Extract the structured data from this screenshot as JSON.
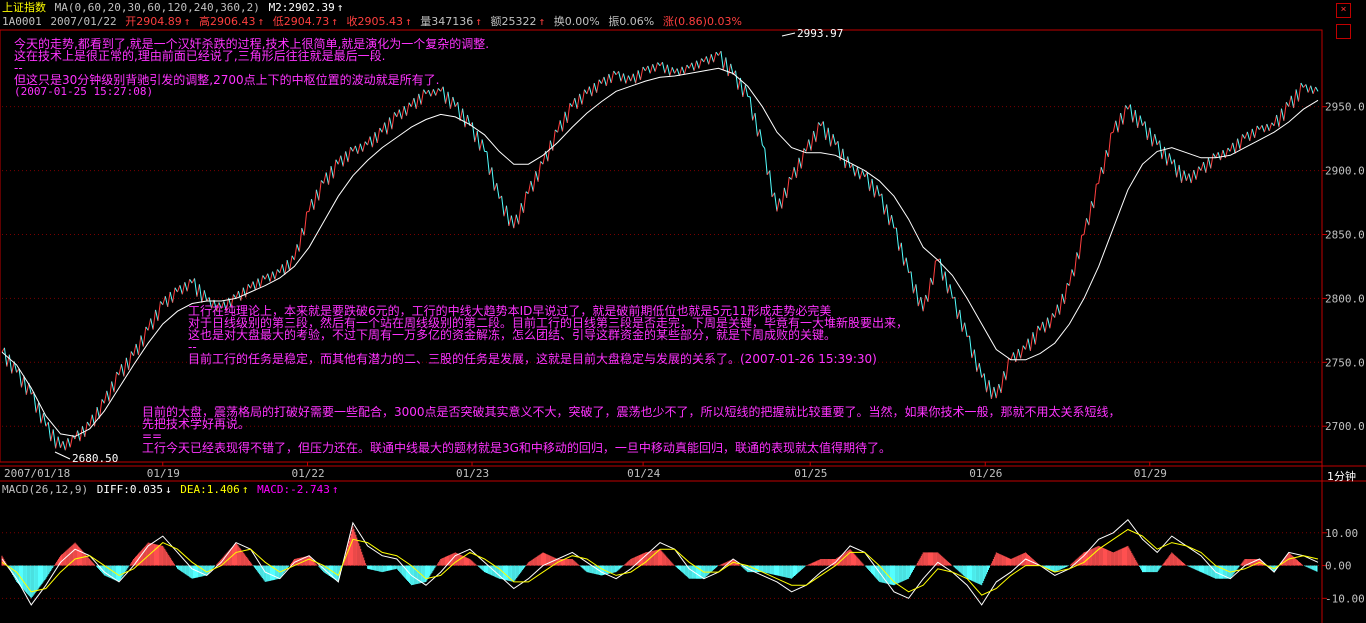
{
  "header": {
    "index_name": "上证指数",
    "ma_label": "MA(0,60,20,30,60,120,240,360,2)",
    "ma_value": "M2:2902.39",
    "code": "1A0001",
    "date": "2007/01/22",
    "open": "开2904.89",
    "high": "高2906.43",
    "low": "低2904.73",
    "close": "收2905.43",
    "volume": "量347136",
    "amount": "额25322",
    "turnover": "换0.00%",
    "amplitude": "振0.06%",
    "change": "涨(0.86)0.03%",
    "arrow": "↑"
  },
  "macd": {
    "label": "MACD(26,12,9)",
    "diff": "DIFF:0.035",
    "dea": "DEA:1.406",
    "macd": "MACD:-2.743",
    "down": "↓",
    "up": "↑"
  },
  "timeframe": "1分钟",
  "annotations": {
    "high_label": "2993.97",
    "low_label": "2680.50",
    "note1": [
      "今天的走势,都看到了,就是一个汉奸杀跌的过程,技术上很简单,就是演化为一个复杂的调整.",
      "这在技术上是很正常的,理由前面已经说了,三角形后往往就是最后一段.",
      "--",
      "但这只是30分钟级别背驰引发的调整,2700点上下的中枢位置的波动就是所有了.",
      "(2007-01-25 15:27:08)"
    ],
    "note2": [
      "工行在纯理论上，本来就是要跌破6元的，工行的中线大趋势本ID早说过了，就是破前期低位也就是5元11形成走势必完美",
      "对于日线级别的第三段，然后有一个站在周线级别的第二段。目前工行的日线第三段是否走完，下周是关键，毕竟有一大堆新股要出来，",
      "这也是对大盘最大的考验，不过下周有一万多亿的资金解冻，怎么团结、引导这群资金的某些部分，就是下周成败的关键。",
      "--",
      "目前工行的任务是稳定，而其他有潜力的二、三股的任务是发展，这就是目前大盘稳定与发展的关系了。(2007-01-26 15:39:30)"
    ],
    "note3": [
      "目前的大盘，震荡格局的打破好需要一些配合，3000点是否突破其实意义不大，突破了，震荡也少不了，所以短线的把握就比较重要了。当然，如果你技术一般，那就不用太关系短线，",
      "先把技术学好再说。",
      "==",
      "工行今天已经表现得不错了，但压力还在。联通中线最大的题材就是3G和中移动的回归，一旦中移动真能回归，联通的表现就太值得期待了。"
    ]
  },
  "chart_data": [
    {
      "type": "line",
      "title": "上证指数 1分钟",
      "x_ticks": [
        "2007/01/18",
        "01/19",
        "01/22",
        "01/23",
        "01/24",
        "01/25",
        "01/26",
        "01/29"
      ],
      "y_ticks": [
        "2950.0",
        "2900.0",
        "2850.0",
        "2800.0",
        "2750.0",
        "2700.0"
      ],
      "ylim": [
        2672,
        3010
      ],
      "series": [
        {
          "name": "price",
          "color": "#ff4040",
          "values": [
            2758,
            2742,
            2725,
            2700,
            2683,
            2690,
            2700,
            2718,
            2740,
            2755,
            2775,
            2795,
            2805,
            2812,
            2798,
            2792,
            2800,
            2808,
            2815,
            2820,
            2830,
            2868,
            2890,
            2905,
            2915,
            2920,
            2930,
            2942,
            2950,
            2960,
            2962,
            2950,
            2935,
            2915,
            2878,
            2855,
            2882,
            2905,
            2930,
            2950,
            2960,
            2968,
            2975,
            2970,
            2978,
            2982,
            2976,
            2980,
            2985,
            2990,
            2975,
            2958,
            2920,
            2868,
            2893,
            2915,
            2935,
            2920,
            2902,
            2895,
            2880,
            2855,
            2820,
            2790,
            2830,
            2800,
            2770,
            2738,
            2722,
            2752,
            2760,
            2775,
            2785,
            2810,
            2850,
            2890,
            2930,
            2948,
            2935,
            2920,
            2905,
            2892,
            2900,
            2910,
            2915,
            2925,
            2932,
            2935,
            2950,
            2965,
            2962
          ]
        },
        {
          "name": "MA",
          "color": "#ffffff",
          "values": [
            2758,
            2748,
            2730,
            2708,
            2694,
            2692,
            2698,
            2712,
            2730,
            2748,
            2765,
            2780,
            2790,
            2796,
            2798,
            2798,
            2800,
            2805,
            2810,
            2816,
            2825,
            2840,
            2860,
            2880,
            2896,
            2908,
            2918,
            2926,
            2934,
            2940,
            2944,
            2942,
            2936,
            2928,
            2915,
            2905,
            2905,
            2912,
            2922,
            2934,
            2945,
            2954,
            2962,
            2966,
            2970,
            2973,
            2974,
            2976,
            2978,
            2980,
            2976,
            2966,
            2950,
            2930,
            2918,
            2914,
            2914,
            2912,
            2906,
            2900,
            2892,
            2880,
            2862,
            2840,
            2830,
            2818,
            2800,
            2780,
            2760,
            2752,
            2752,
            2757,
            2765,
            2780,
            2800,
            2825,
            2855,
            2885,
            2905,
            2915,
            2918,
            2914,
            2910,
            2910,
            2912,
            2918,
            2924,
            2930,
            2938,
            2948,
            2955
          ]
        }
      ]
    },
    {
      "type": "bar",
      "title": "MACD(26,12,9)",
      "y_ticks": [
        "10.00",
        "0.00",
        "-10.00"
      ],
      "ylim": [
        -16,
        20
      ],
      "series": [
        {
          "name": "DIFF",
          "color": "#ffffff",
          "values": [
            2,
            -4,
            -12,
            -6,
            1,
            5,
            3,
            -2,
            -5,
            0,
            6,
            9,
            4,
            -1,
            -3,
            1,
            7,
            5,
            -2,
            -4,
            1,
            3,
            -1,
            -5,
            13,
            6,
            3,
            2,
            -3,
            -6,
            -2,
            3,
            5,
            1,
            -3,
            -7,
            -4,
            0,
            2,
            4,
            1,
            -2,
            -4,
            -1,
            3,
            7,
            5,
            -1,
            -4,
            -2,
            2,
            -1,
            -3,
            -5,
            -8,
            -6,
            -2,
            1,
            6,
            4,
            -2,
            -8,
            -10,
            -4,
            1,
            -2,
            -6,
            -12,
            -5,
            -2,
            2,
            0,
            -3,
            -1,
            3,
            8,
            10,
            14,
            8,
            4,
            9,
            6,
            3,
            -2,
            -4,
            0,
            2,
            -2,
            4,
            3,
            1
          ]
        },
        {
          "name": "DEA",
          "color": "#ffff00",
          "values": [
            1,
            -2,
            -8,
            -7,
            -2,
            2,
            3,
            0,
            -3,
            -1,
            3,
            7,
            5,
            1,
            -2,
            0,
            4,
            5,
            1,
            -2,
            0,
            2,
            0,
            -3,
            8,
            7,
            4,
            3,
            0,
            -4,
            -3,
            1,
            4,
            2,
            -1,
            -5,
            -5,
            -2,
            1,
            3,
            2,
            -1,
            -3,
            -2,
            1,
            5,
            5,
            1,
            -2,
            -2,
            1,
            0,
            -2,
            -4,
            -6,
            -6,
            -3,
            0,
            4,
            4,
            0,
            -5,
            -8,
            -6,
            -1,
            -2,
            -4,
            -9,
            -7,
            -3,
            0,
            0,
            -2,
            -1,
            1,
            5,
            8,
            11,
            9,
            5,
            7,
            6,
            4,
            0,
            -2,
            -1,
            1,
            -1,
            2,
            3,
            2
          ]
        },
        {
          "name": "MACD",
          "color": "#ff5050",
          "neg_color": "#54ffff",
          "values": [
            3,
            -5,
            -10,
            -4,
            3,
            7,
            2,
            -3,
            -5,
            2,
            7,
            6,
            -1,
            -4,
            -3,
            2,
            7,
            1,
            -5,
            -4,
            2,
            3,
            -2,
            -5,
            12,
            -1,
            -2,
            -1,
            -6,
            -5,
            2,
            4,
            2,
            -2,
            -4,
            -5,
            1,
            4,
            2,
            2,
            -2,
            -3,
            -2,
            2,
            4,
            5,
            0,
            -4,
            -4,
            0,
            2,
            -2,
            -2,
            -3,
            -4,
            0,
            2,
            2,
            5,
            0,
            -5,
            -6,
            -4,
            4,
            4,
            0,
            -4,
            -6,
            4,
            2,
            4,
            0,
            -2,
            0,
            4,
            6,
            4,
            6,
            -2,
            -2,
            4,
            0,
            -2,
            -4,
            -4,
            2,
            2,
            -2,
            4,
            0,
            -2
          ]
        }
      ]
    }
  ]
}
